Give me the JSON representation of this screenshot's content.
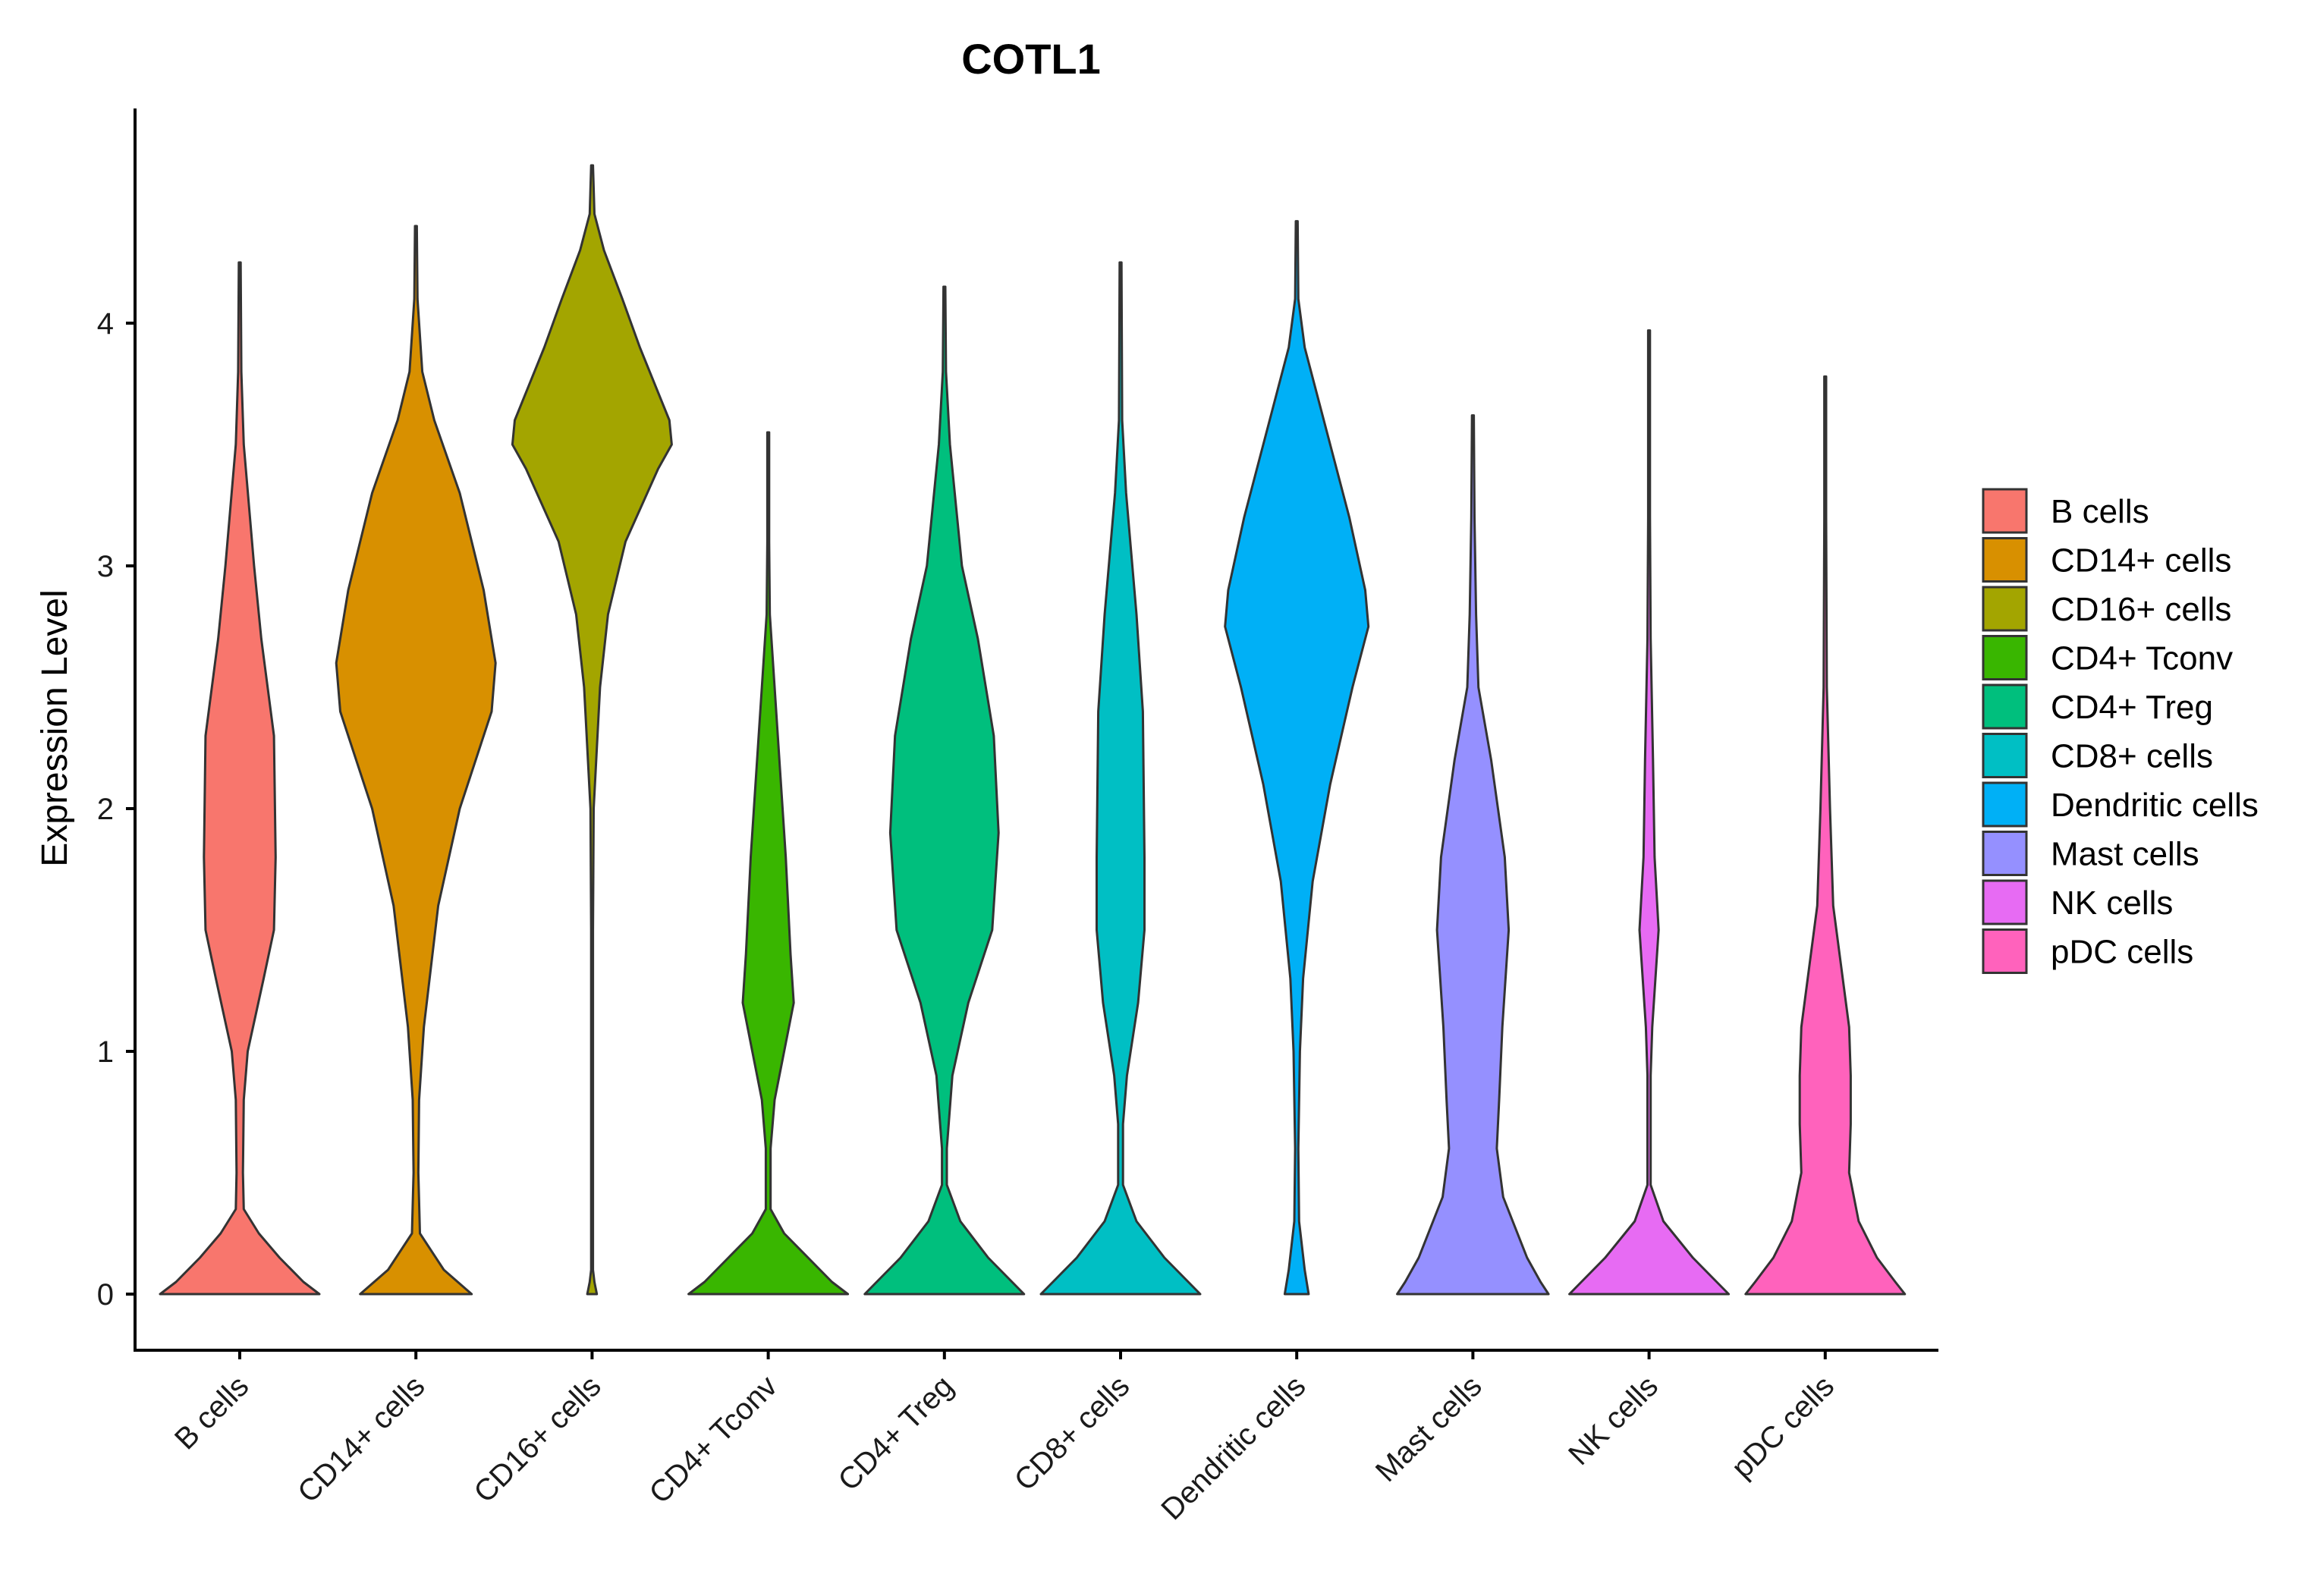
{
  "chart_data": {
    "type": "violin",
    "title": "COTL1",
    "xlabel": "",
    "ylabel": "Expression Level",
    "ylim": [
      -0.23,
      4.9
    ],
    "yticks": [
      0,
      1,
      2,
      3,
      4
    ],
    "legend_position": "right",
    "grid": false,
    "categories": [
      "B cells",
      "CD14+ cells",
      "CD16+ cells",
      "CD4+ Tconv",
      "CD4+ Treg",
      "CD8+ cells",
      "Dendritic cells",
      "Mast cells",
      "NK cells",
      "pDC cells"
    ],
    "colors": [
      "#F8766D",
      "#D89000",
      "#A3A500",
      "#39B600",
      "#00BF7D",
      "#00BFC4",
      "#00B0F6",
      "#9590FF",
      "#E76BF3",
      "#FF62BC"
    ],
    "series": [
      {
        "name": "B cells",
        "max": 4.25,
        "density_profile": [
          [
            0,
            1.0
          ],
          [
            0.05,
            0.8
          ],
          [
            0.15,
            0.5
          ],
          [
            0.25,
            0.24
          ],
          [
            0.35,
            0.05
          ],
          [
            0.5,
            0.04
          ],
          [
            0.8,
            0.05
          ],
          [
            1.0,
            0.1
          ],
          [
            1.3,
            0.3
          ],
          [
            1.5,
            0.43
          ],
          [
            1.8,
            0.45
          ],
          [
            2.3,
            0.43
          ],
          [
            2.7,
            0.27
          ],
          [
            3.0,
            0.18
          ],
          [
            3.5,
            0.05
          ],
          [
            3.8,
            0.02
          ],
          [
            4.25,
            0.0
          ]
        ]
      },
      {
        "name": "CD14+ cells",
        "max": 4.4,
        "density_profile": [
          [
            0,
            0.7
          ],
          [
            0.1,
            0.35
          ],
          [
            0.25,
            0.05
          ],
          [
            0.5,
            0.03
          ],
          [
            0.8,
            0.04
          ],
          [
            1.1,
            0.1
          ],
          [
            1.6,
            0.28
          ],
          [
            2.0,
            0.55
          ],
          [
            2.4,
            0.95
          ],
          [
            2.6,
            1.0
          ],
          [
            2.9,
            0.85
          ],
          [
            3.3,
            0.55
          ],
          [
            3.6,
            0.23
          ],
          [
            3.8,
            0.08
          ],
          [
            4.1,
            0.02
          ],
          [
            4.4,
            0.0
          ]
        ]
      },
      {
        "name": "CD16+ cells",
        "max": 4.65,
        "density_profile": [
          [
            0,
            0.06
          ],
          [
            0.05,
            0.03
          ],
          [
            0.1,
            0.008
          ],
          [
            1.5,
            0.008
          ],
          [
            2.0,
            0.02
          ],
          [
            2.5,
            0.1
          ],
          [
            2.8,
            0.2
          ],
          [
            3.1,
            0.42
          ],
          [
            3.4,
            0.83
          ],
          [
            3.5,
            1.0
          ],
          [
            3.6,
            0.97
          ],
          [
            3.9,
            0.6
          ],
          [
            4.1,
            0.38
          ],
          [
            4.3,
            0.15
          ],
          [
            4.45,
            0.03
          ],
          [
            4.65,
            0.0
          ]
        ]
      },
      {
        "name": "CD4+ Tconv",
        "max": 3.55,
        "density_profile": [
          [
            0,
            1.0
          ],
          [
            0.05,
            0.8
          ],
          [
            0.15,
            0.5
          ],
          [
            0.25,
            0.2
          ],
          [
            0.35,
            0.03
          ],
          [
            0.6,
            0.03
          ],
          [
            0.8,
            0.08
          ],
          [
            1.0,
            0.2
          ],
          [
            1.2,
            0.32
          ],
          [
            1.4,
            0.28
          ],
          [
            1.8,
            0.22
          ],
          [
            2.3,
            0.12
          ],
          [
            2.8,
            0.02
          ],
          [
            3.1,
            0.01
          ],
          [
            3.55,
            0.0
          ]
        ]
      },
      {
        "name": "CD4+ Treg",
        "max": 4.15,
        "density_profile": [
          [
            0,
            1.0
          ],
          [
            0.05,
            0.85
          ],
          [
            0.15,
            0.55
          ],
          [
            0.3,
            0.2
          ],
          [
            0.45,
            0.03
          ],
          [
            0.6,
            0.03
          ],
          [
            0.9,
            0.1
          ],
          [
            1.2,
            0.3
          ],
          [
            1.5,
            0.6
          ],
          [
            1.9,
            0.68
          ],
          [
            2.3,
            0.62
          ],
          [
            2.7,
            0.42
          ],
          [
            3.0,
            0.22
          ],
          [
            3.5,
            0.07
          ],
          [
            3.8,
            0.02
          ],
          [
            4.15,
            0.0
          ]
        ]
      },
      {
        "name": "CD8+ cells",
        "max": 4.25,
        "density_profile": [
          [
            0,
            1.0
          ],
          [
            0.05,
            0.85
          ],
          [
            0.15,
            0.55
          ],
          [
            0.3,
            0.2
          ],
          [
            0.45,
            0.03
          ],
          [
            0.7,
            0.03
          ],
          [
            0.9,
            0.08
          ],
          [
            1.2,
            0.22
          ],
          [
            1.5,
            0.3
          ],
          [
            1.8,
            0.3
          ],
          [
            2.4,
            0.28
          ],
          [
            2.8,
            0.2
          ],
          [
            3.3,
            0.07
          ],
          [
            3.6,
            0.02
          ],
          [
            4.25,
            0.0
          ]
        ]
      },
      {
        "name": "Dendritic cells",
        "max": 4.42,
        "density_profile": [
          [
            0,
            0.15
          ],
          [
            0.1,
            0.1
          ],
          [
            0.3,
            0.03
          ],
          [
            0.6,
            0.02
          ],
          [
            1.0,
            0.04
          ],
          [
            1.3,
            0.08
          ],
          [
            1.7,
            0.2
          ],
          [
            2.1,
            0.42
          ],
          [
            2.5,
            0.7
          ],
          [
            2.75,
            0.9
          ],
          [
            2.9,
            0.86
          ],
          [
            3.2,
            0.66
          ],
          [
            3.5,
            0.42
          ],
          [
            3.9,
            0.1
          ],
          [
            4.1,
            0.02
          ],
          [
            4.42,
            0.0
          ]
        ]
      },
      {
        "name": "Mast cells",
        "max": 3.62,
        "density_profile": [
          [
            0,
            0.95
          ],
          [
            0.05,
            0.85
          ],
          [
            0.15,
            0.68
          ],
          [
            0.4,
            0.38
          ],
          [
            0.6,
            0.3
          ],
          [
            0.8,
            0.33
          ],
          [
            1.1,
            0.37
          ],
          [
            1.5,
            0.45
          ],
          [
            1.8,
            0.4
          ],
          [
            2.2,
            0.23
          ],
          [
            2.5,
            0.07
          ],
          [
            2.8,
            0.04
          ],
          [
            3.2,
            0.02
          ],
          [
            3.62,
            0.0
          ]
        ]
      },
      {
        "name": "NK cells",
        "max": 3.97,
        "density_profile": [
          [
            0,
            1.0
          ],
          [
            0.05,
            0.85
          ],
          [
            0.15,
            0.55
          ],
          [
            0.3,
            0.18
          ],
          [
            0.45,
            0.02
          ],
          [
            0.9,
            0.02
          ],
          [
            1.1,
            0.04
          ],
          [
            1.3,
            0.08
          ],
          [
            1.5,
            0.12
          ],
          [
            1.8,
            0.07
          ],
          [
            2.2,
            0.05
          ],
          [
            2.7,
            0.02
          ],
          [
            3.2,
            0.01
          ],
          [
            3.97,
            0.0
          ]
        ]
      },
      {
        "name": "pDC cells",
        "max": 3.78,
        "density_profile": [
          [
            0,
            1.0
          ],
          [
            0.05,
            0.88
          ],
          [
            0.15,
            0.65
          ],
          [
            0.3,
            0.42
          ],
          [
            0.5,
            0.3
          ],
          [
            0.7,
            0.32
          ],
          [
            0.9,
            0.32
          ],
          [
            1.1,
            0.3
          ],
          [
            1.3,
            0.22
          ],
          [
            1.6,
            0.1
          ],
          [
            2.0,
            0.06
          ],
          [
            2.5,
            0.02
          ],
          [
            3.2,
            0.01
          ],
          [
            3.78,
            0.0
          ]
        ]
      }
    ]
  }
}
